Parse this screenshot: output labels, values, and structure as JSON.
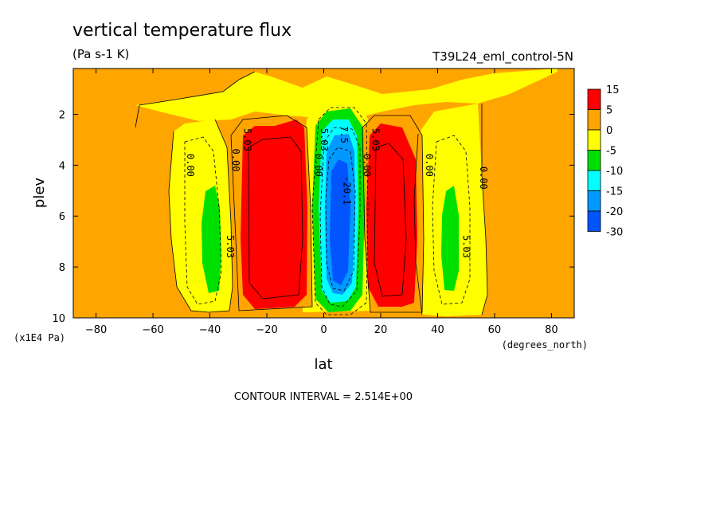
{
  "colors": {
    "orange": "#ffa500",
    "yellow": "#ffff00",
    "green": "#00e000",
    "cyan": "#00ffff",
    "lightblue": "#0099ff",
    "blue": "#0055ff",
    "red": "#ff0000",
    "deepblue": "#0000ff"
  },
  "chart_data": {
    "type": "contour",
    "title": "vertical temperature flux",
    "units": "(Pa s-1 K)",
    "dataset": "T39L24_eml_control-5N",
    "xlabel": "lat",
    "xunits": "(degrees_north)",
    "ylabel": "plev",
    "yunits": "(x1E4 Pa)",
    "xlim": [
      -88,
      88
    ],
    "ylim": [
      0.2,
      10
    ],
    "xticks": [
      -80,
      -60,
      -40,
      -20,
      0,
      20,
      40,
      60,
      80
    ],
    "yticks": [
      2,
      4,
      6,
      8,
      10
    ],
    "footer": "CONTOUR INTERVAL = 2.514E+00",
    "colorbar": {
      "levels": [
        "15",
        "5",
        "0",
        "-5",
        "-10",
        "-15",
        "-20",
        "-30"
      ],
      "colors": [
        "#ff0000",
        "#ffa500",
        "#ffff00",
        "#00e000",
        "#00ffff",
        "#0099ff",
        "#0055ff"
      ]
    },
    "contour_labels": [
      {
        "text": "0.00",
        "lat": -48,
        "plev": 4.0
      },
      {
        "text": "0.00",
        "lat": -32,
        "plev": 3.8
      },
      {
        "text": "5.03",
        "lat": -34,
        "plev": 7.2
      },
      {
        "text": "5.03",
        "lat": -28,
        "plev": 3.0
      },
      {
        "text": "0.00",
        "lat": -3,
        "plev": 4.0
      },
      {
        "text": "5.03",
        "lat": -1,
        "plev": 3.0
      },
      {
        "text": "7.5",
        "lat": 6,
        "plev": 2.8
      },
      {
        "text": "-20.1",
        "lat": 7,
        "plev": 5.0
      },
      {
        "text": "0.00",
        "lat": 14,
        "plev": 4.0
      },
      {
        "text": "5.03",
        "lat": 17,
        "plev": 3.0
      },
      {
        "text": "0.00",
        "lat": 36,
        "plev": 4.0
      },
      {
        "text": "5.03",
        "lat": 49,
        "plev": 7.2
      },
      {
        "text": "0.00",
        "lat": 55,
        "plev": 4.5
      }
    ]
  }
}
